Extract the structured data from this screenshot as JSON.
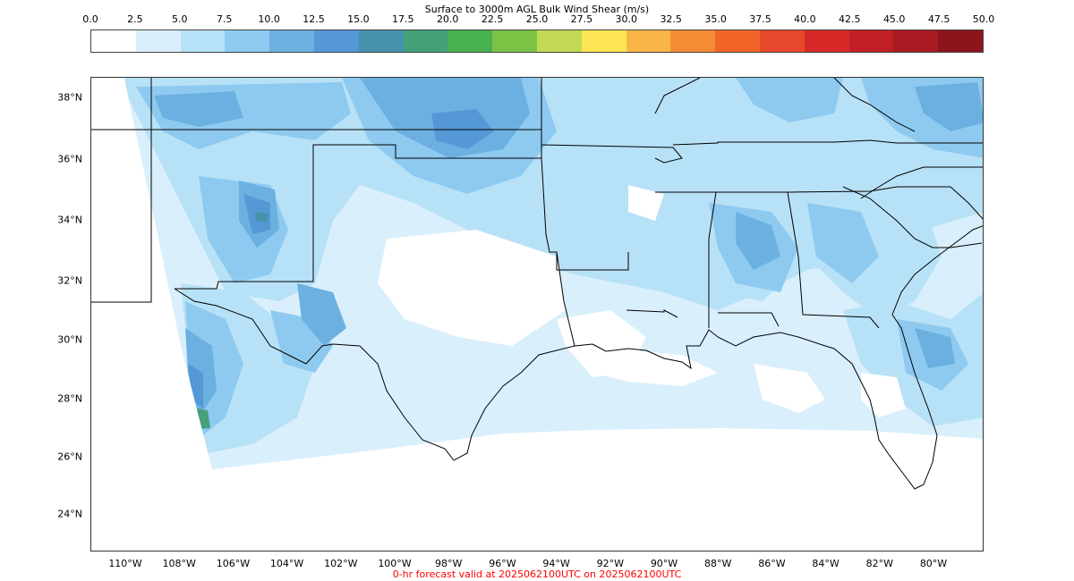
{
  "colorbar": {
    "title": "Surface to 3000m AGL Bulk Wind Shear (m/s)",
    "ticks": [
      "0.0",
      "2.5",
      "5.0",
      "7.5",
      "10.0",
      "12.5",
      "15.0",
      "17.5",
      "20.0",
      "22.5",
      "25.0",
      "27.5",
      "30.0",
      "32.5",
      "35.0",
      "37.5",
      "40.0",
      "42.5",
      "45.0",
      "47.5",
      "50.0"
    ],
    "colors": [
      "#ffffff",
      "#d9effb",
      "#b7e1f6",
      "#8ecaf0",
      "#6bb0e0",
      "#5598d6",
      "#4592ac",
      "#45a07a",
      "#45b14f",
      "#7cc245",
      "#c2d955",
      "#fbe552",
      "#f8b548",
      "#f58b35",
      "#f16428",
      "#e6482b",
      "#d82828",
      "#c11e25",
      "#a81a21",
      "#8e141b"
    ]
  },
  "map": {
    "lat_labels": [
      "38°N",
      "36°N",
      "34°N",
      "32°N",
      "30°N",
      "28°N",
      "26°N",
      "24°N"
    ],
    "lon_labels": [
      "110°W",
      "108°W",
      "106°W",
      "104°W",
      "102°W",
      "100°W",
      "98°W",
      "96°W",
      "94°W",
      "92°W",
      "90°W",
      "88°W",
      "86°W",
      "84°W",
      "82°W",
      "80°W"
    ]
  },
  "footer": "0-hr forecast valid at 2025062100UTC on 2025062100UTC"
}
